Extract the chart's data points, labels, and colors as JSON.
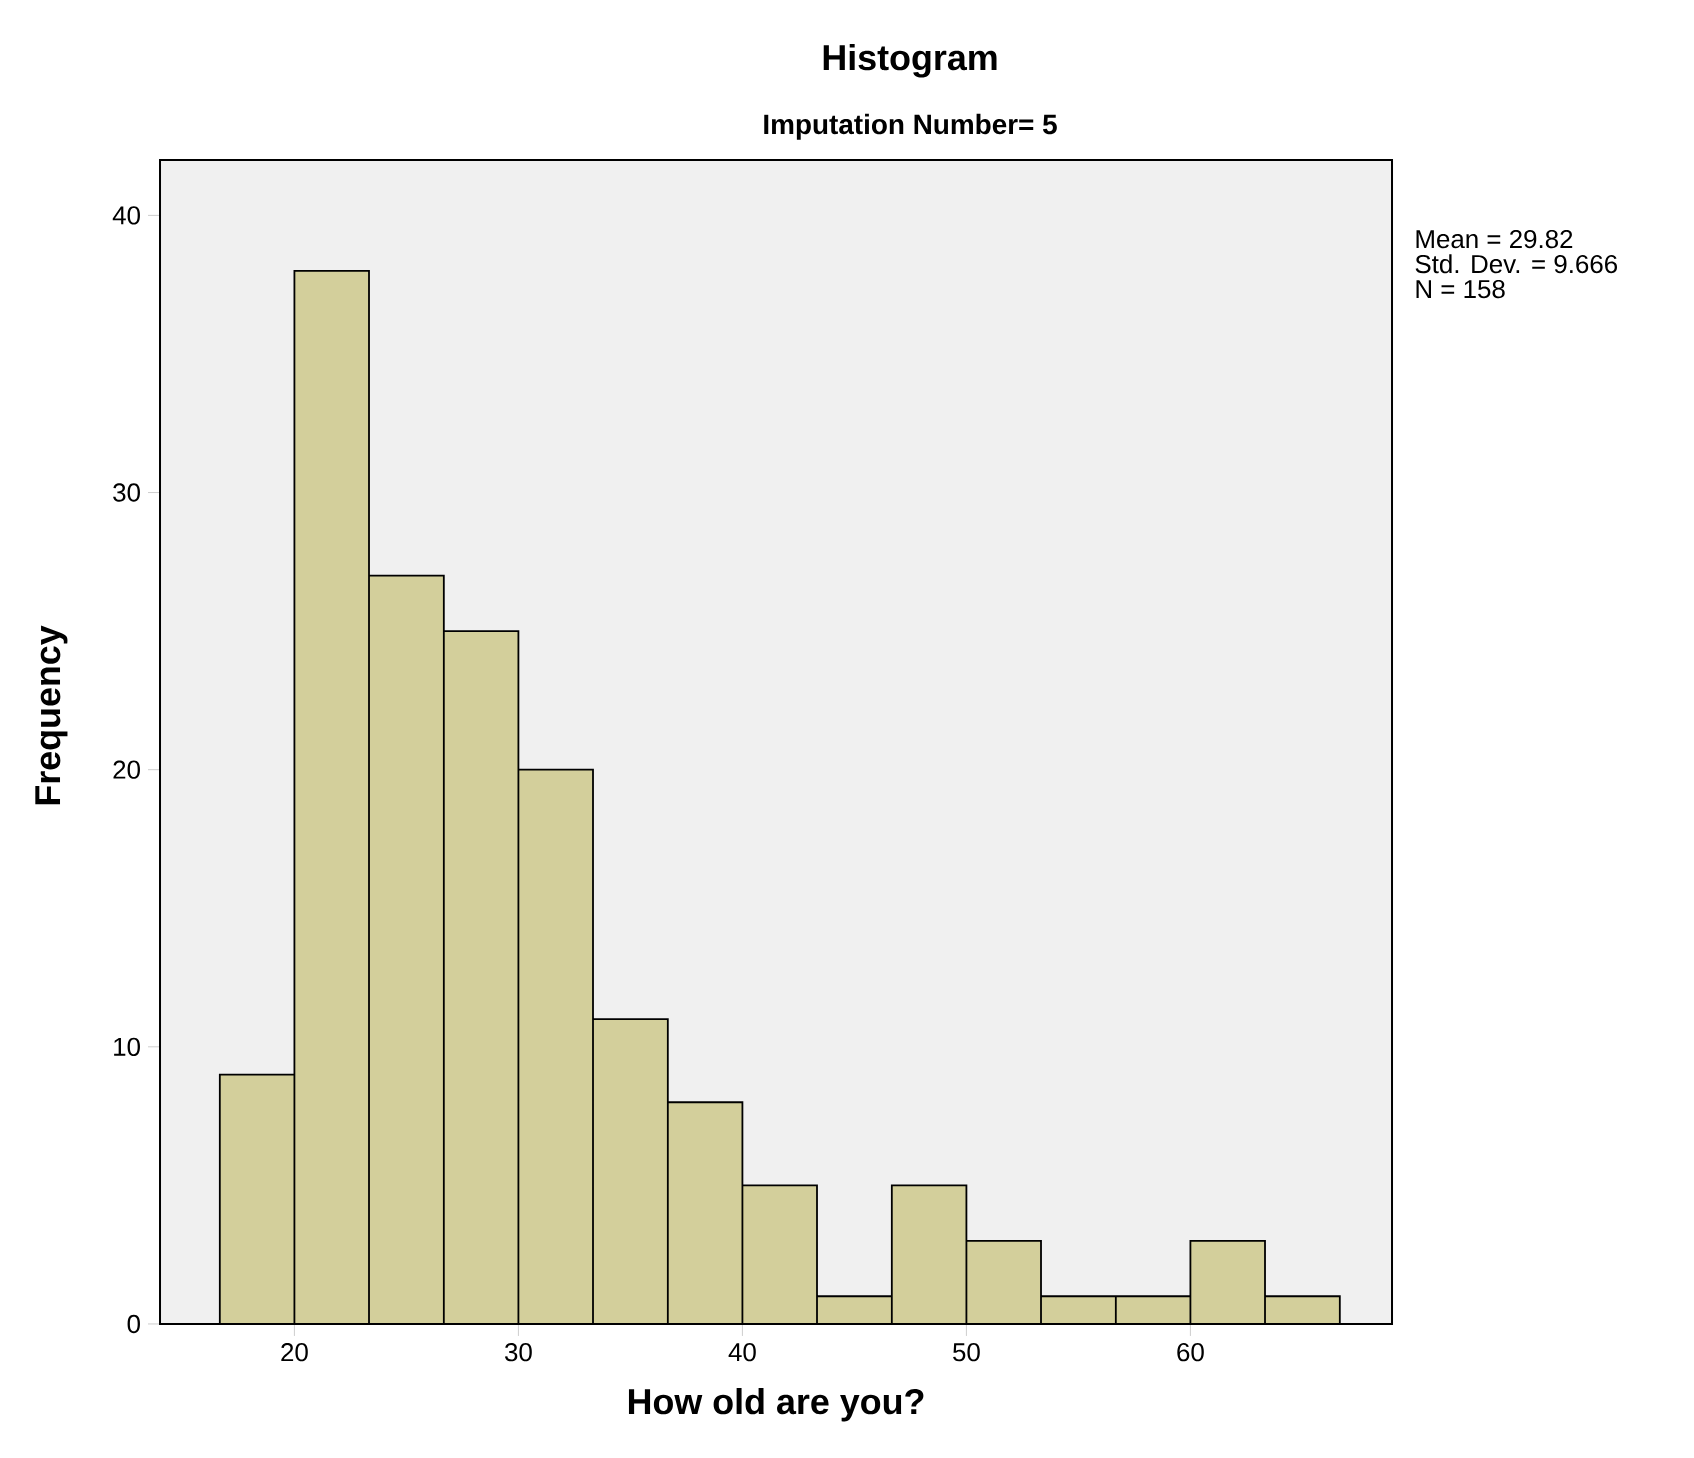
{
  "chart_data": {
    "type": "histogram",
    "title": "Histogram",
    "subtitle": "Imputation Number= 5",
    "xlabel": "How old are you?",
    "ylabel": "Frequency",
    "bins": [
      16.67,
      20,
      23.33,
      26.67,
      30,
      33.33,
      36.67,
      40,
      43.33,
      46.67,
      50,
      53.33,
      56.67,
      60,
      63.33,
      66.67
    ],
    "values": [
      9,
      38,
      27,
      25,
      20,
      11,
      8,
      5,
      1,
      5,
      3,
      1,
      1,
      3,
      1
    ],
    "color": "#d3cf9b",
    "xlim": [
      14,
      69
    ],
    "ylim": [
      0,
      42
    ],
    "xticks": [
      20,
      30,
      40,
      50,
      60
    ],
    "yticks": [
      0,
      10,
      20,
      30,
      40
    ],
    "annotations": [
      "Mean = 29.82",
      "Std. Dev. = 9.666",
      "N = 158"
    ]
  }
}
